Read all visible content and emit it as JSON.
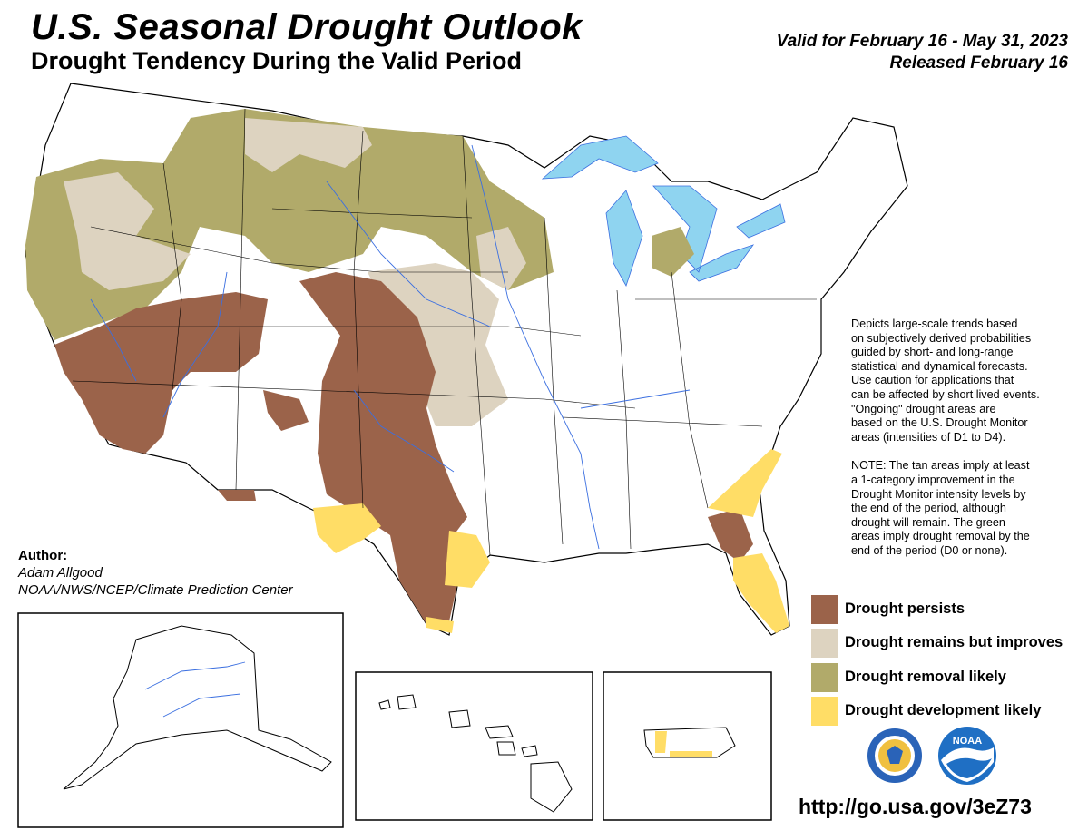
{
  "title": "U.S. Seasonal Drought Outlook",
  "subtitle": "Drought Tendency During the Valid Period",
  "valid_line": "Valid for February 16 - May 31, 2023",
  "released_line": "Released February 16",
  "description": [
    "Depicts large-scale trends based",
    "on subjectively derived probabilities",
    "guided by short- and long-range",
    "statistical and dynamical forecasts.",
    "Use caution for applications that",
    "can be affected by short lived events.",
    "\"Ongoing\" drought areas are",
    "based on the U.S. Drought Monitor",
    "areas (intensities of D1 to D4)."
  ],
  "note": [
    "NOTE: The tan areas imply at least",
    "a 1-category improvement in the",
    "Drought Monitor intensity levels by",
    "the end of the period, although",
    "drought will remain. The green",
    "areas imply drought removal by the",
    "end of the period (D0 or none)."
  ],
  "author": {
    "label": "Author:",
    "name": "Adam Allgood",
    "org": "NOAA/NWS/NCEP/Climate Prediction Center"
  },
  "legend": [
    {
      "label": "Drought persists",
      "color": "#9b634a"
    },
    {
      "label": "Drought remains but improves",
      "color": "#ddd3c0"
    },
    {
      "label": "Drought removal likely",
      "color": "#b1aa6a"
    },
    {
      "label": "Drought development likely",
      "color": "#ffdd66"
    }
  ],
  "url": "http://go.usa.gov/3eZ73",
  "colors": {
    "persists": "#9b634a",
    "improves": "#ddd3c0",
    "removal": "#b1aa6a",
    "development": "#ffdd66",
    "water": "#8fd4f0",
    "rivers": "#3b6fe0",
    "noaa_blue": "#1f6fc4",
    "commerce_blue": "#2a63b8"
  },
  "icons": [
    "commerce-seal-icon",
    "noaa-logo-icon"
  ],
  "logo_text": {
    "noaa": "NOAA"
  }
}
